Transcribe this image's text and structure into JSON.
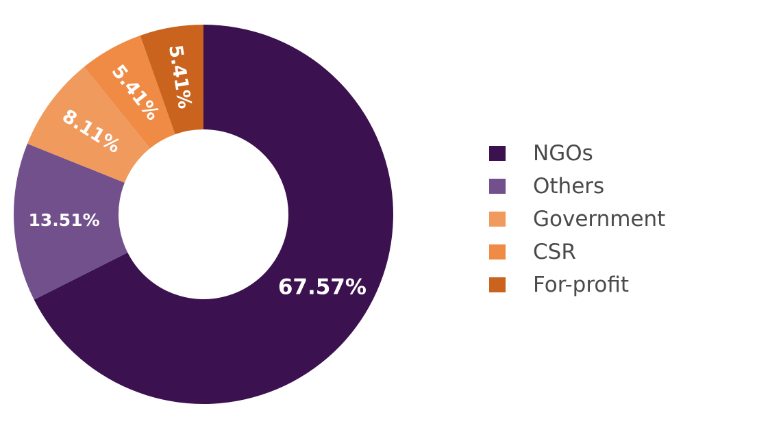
{
  "chart_data": {
    "type": "pie",
    "donut": true,
    "title": "",
    "categories": [
      "NGOs",
      "Others",
      "Government",
      "CSR",
      "For-profit"
    ],
    "values": [
      67.57,
      13.51,
      8.11,
      5.41,
      5.41
    ],
    "value_labels": [
      "67.57%",
      "13.51%",
      "8.11%",
      "5.41%",
      "5.41%"
    ],
    "colors": [
      "#3b1150",
      "#72508c",
      "#f09a5e",
      "#ef8b44",
      "#c9631e"
    ],
    "start_angle": "12 o'clock",
    "direction": "clockwise",
    "legend_position": "right"
  },
  "legend": {
    "items": [
      {
        "label": "NGOs",
        "color": "#3b1150"
      },
      {
        "label": "Others",
        "color": "#72508c"
      },
      {
        "label": "Government",
        "color": "#f09a5e"
      },
      {
        "label": "CSR",
        "color": "#ef8b44"
      },
      {
        "label": "For-profit",
        "color": "#c9631e"
      }
    ]
  }
}
